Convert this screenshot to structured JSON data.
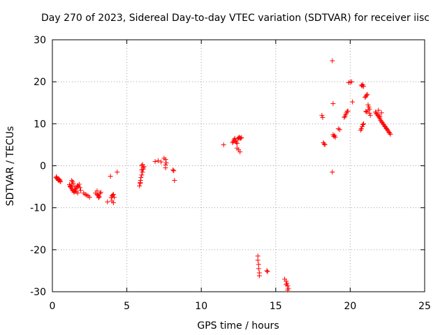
{
  "chart_data": {
    "type": "scatter",
    "title": "Day 270 of 2023, Sidereal Day-to-day VTEC variation (SDTVAR) for receiver iisc",
    "xlabel": "GPS time / hours",
    "ylabel": "SDTVAR / TECUs",
    "xlim": [
      0,
      25
    ],
    "ylim": [
      -30,
      30
    ],
    "xticks": [
      0,
      5,
      10,
      15,
      20,
      25
    ],
    "yticks": [
      -30,
      -20,
      -10,
      0,
      10,
      20,
      30
    ],
    "grid": true,
    "marker": "+",
    "color": "#ff0000",
    "series": [
      {
        "name": "SDTVAR",
        "x": [
          0.25,
          0.3,
          0.35,
          0.4,
          0.45,
          0.5,
          0.55,
          0.28,
          0.42,
          0.5,
          1.15,
          1.2,
          1.25,
          1.3,
          1.35,
          1.4,
          1.45,
          1.5,
          1.55,
          1.6,
          1.65,
          1.7,
          1.75,
          1.8,
          1.85,
          1.9,
          1.3,
          1.4,
          1.5,
          1.6,
          1.7,
          1.2,
          1.3,
          1.35,
          2.1,
          2.2,
          2.3,
          2.4,
          2.5,
          2.9,
          3.0,
          3.05,
          3.1,
          3.15,
          3.2,
          3.25,
          3.0,
          3.1,
          3.7,
          3.9,
          3.95,
          4.0,
          4.05,
          4.1,
          4.15,
          4.0,
          4.1,
          4.35,
          5.85,
          5.9,
          5.92,
          5.95,
          6.0,
          6.05,
          6.1,
          6.15,
          6.0,
          5.9,
          6.05,
          6.1,
          6.0,
          6.9,
          7.1,
          7.3,
          7.5,
          7.6,
          7.6,
          7.6,
          7.65,
          8.1,
          8.15,
          8.2,
          11.5,
          12.1,
          12.15,
          12.2,
          12.25,
          12.3,
          12.35,
          12.4,
          12.45,
          12.5,
          12.55,
          12.6,
          12.65,
          12.7,
          12.5,
          12.6,
          12.4,
          13.8,
          13.8,
          13.85,
          13.85,
          13.9,
          13.9,
          14.4,
          14.45,
          15.6,
          15.7,
          15.75,
          15.8,
          15.85,
          15.7,
          15.8,
          18.1,
          18.15,
          18.2,
          18.25,
          18.3,
          18.8,
          18.85,
          18.9,
          18.95,
          18.8,
          18.85,
          19.0,
          19.2,
          19.3,
          19.6,
          19.65,
          19.7,
          19.75,
          19.8,
          19.85,
          19.9,
          20.0,
          20.1,
          20.15,
          20.7,
          20.75,
          20.8,
          20.85,
          20.9,
          20.75,
          20.8,
          20.85,
          20.9,
          21.0,
          21.05,
          21.1,
          21.15,
          21.2,
          21.25,
          21.3,
          21.05,
          21.1,
          21.2,
          21.3,
          21.35,
          21.7,
          21.75,
          21.8,
          21.85,
          21.9,
          21.95,
          22.0,
          22.05,
          22.1,
          22.15,
          22.2,
          22.25,
          22.3,
          22.35,
          22.4,
          22.45,
          22.5,
          22.55,
          22.6,
          22.65,
          22.7,
          21.9,
          22.0,
          22.1
        ],
        "y": [
          -2.8,
          -3.0,
          -3.2,
          -3.5,
          -3.3,
          -3.6,
          -3.8,
          -2.6,
          -3.1,
          -3.4,
          -4.5,
          -4.8,
          -5.2,
          -5.5,
          -5.8,
          -6.0,
          -6.3,
          -6.1,
          -5.7,
          -5.4,
          -5.0,
          -4.7,
          -4.9,
          -4.4,
          -5.2,
          -5.9,
          -3.5,
          -4.2,
          -5.0,
          -6.2,
          -6.5,
          -5.0,
          -4.6,
          -3.8,
          -6.5,
          -6.8,
          -7.0,
          -7.2,
          -7.5,
          -6.5,
          -6.8,
          -7.0,
          -7.2,
          -7.4,
          -6.6,
          -6.3,
          -6.0,
          -7.6,
          -8.6,
          -2.5,
          -7.6,
          -7.2,
          -7.0,
          -6.8,
          -7.5,
          -8.4,
          -8.8,
          -1.5,
          -4.8,
          -4.2,
          -3.5,
          -2.8,
          -2.2,
          -1.5,
          -0.8,
          -0.2,
          0.0,
          -4.0,
          0.3,
          -0.5,
          -1.0,
          1.0,
          1.2,
          0.9,
          1.8,
          1.5,
          0.2,
          -0.5,
          0.7,
          -1.0,
          -1.2,
          -3.5,
          5.0,
          5.5,
          5.8,
          6.2,
          6.5,
          5.9,
          5.6,
          5.3,
          6.4,
          6.6,
          6.8,
          6.5,
          6.6,
          6.7,
          3.8,
          3.3,
          4.2,
          -21.5,
          -22.5,
          -23.5,
          -24.5,
          -25.5,
          -26.2,
          -25.0,
          -25.2,
          -27.0,
          -27.5,
          -28.0,
          -28.6,
          -29.2,
          -28.3,
          -29.6,
          12.0,
          11.5,
          5.5,
          5.2,
          5.0,
          25.0,
          14.8,
          7.0,
          7.2,
          -1.5,
          7.4,
          6.8,
          8.8,
          8.6,
          11.5,
          11.8,
          12.2,
          12.6,
          13.0,
          13.0,
          19.8,
          19.9,
          20.0,
          15.2,
          8.5,
          8.8,
          9.3,
          9.8,
          10.0,
          19.2,
          19.0,
          19.3,
          18.9,
          16.3,
          16.5,
          16.8,
          17.0,
          14.5,
          14.0,
          13.5,
          13.0,
          12.8,
          13.2,
          12.5,
          12.0,
          12.8,
          12.5,
          12.3,
          12.0,
          11.8,
          11.5,
          11.2,
          10.8,
          10.5,
          10.3,
          10.0,
          9.8,
          9.5,
          9.3,
          9.0,
          8.8,
          8.6,
          8.3,
          8.0,
          7.8,
          7.5,
          13.2,
          11.8,
          12.6
        ]
      }
    ]
  }
}
